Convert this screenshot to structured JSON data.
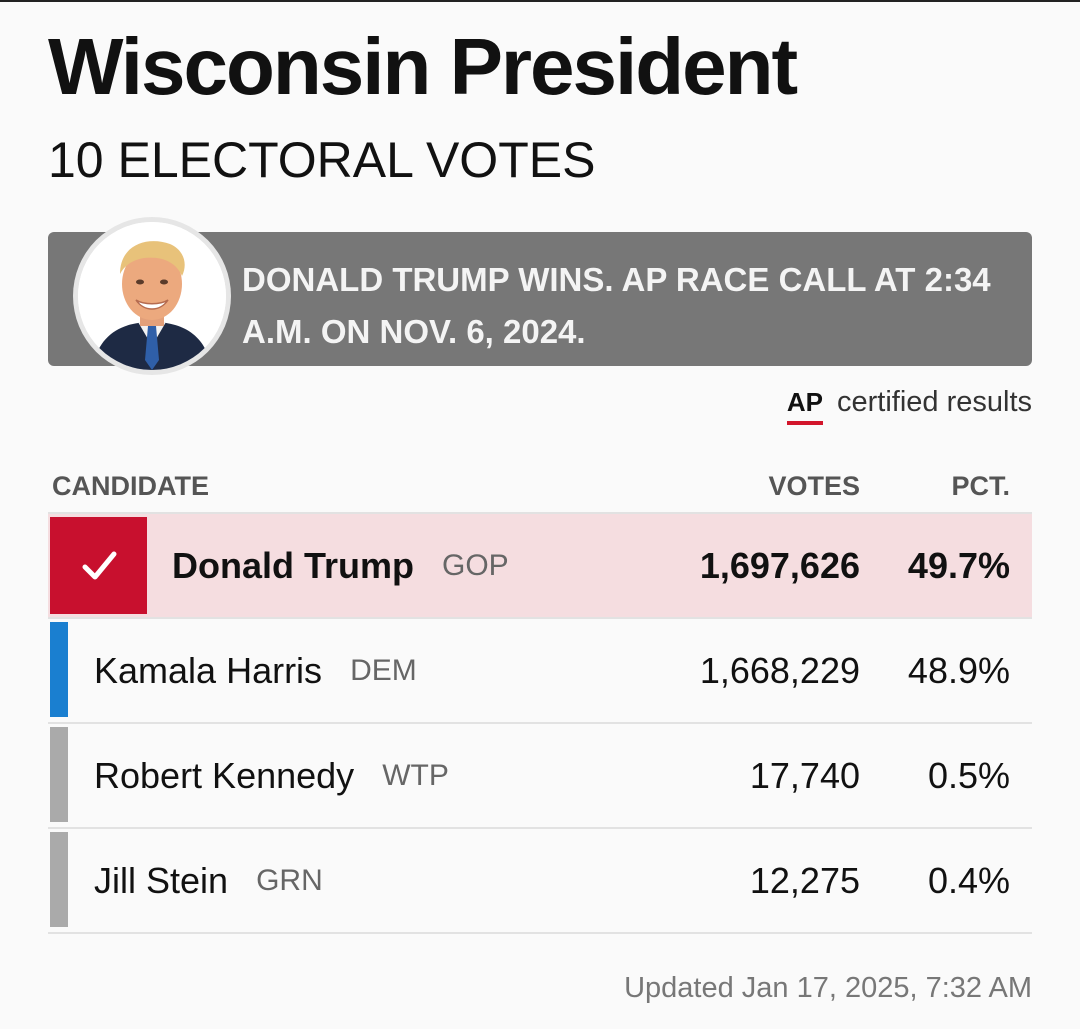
{
  "race": {
    "title": "Wisconsin President",
    "subtitle": "10 ELECTORAL VOTES"
  },
  "banner": {
    "text": "DONALD TRUMP WINS. AP RACE CALL AT 2:34 A.M. ON NOV. 6, 2024.",
    "avatar_icon": "candidate-portrait-icon"
  },
  "certification": {
    "logo": "AP",
    "text": "certified results",
    "underline_color": "#d2152b"
  },
  "table": {
    "headers": {
      "candidate": "CANDIDATE",
      "votes": "VOTES",
      "pct": "PCT."
    },
    "rows": [
      {
        "name": "Donald Trump",
        "party": "GOP",
        "votes": "1,697,626",
        "pct": "49.7%",
        "winner": true,
        "color": "#c8102e"
      },
      {
        "name": "Kamala Harris",
        "party": "DEM",
        "votes": "1,668,229",
        "pct": "48.9%",
        "winner": false,
        "color": "#1a7fd0"
      },
      {
        "name": "Robert Kennedy",
        "party": "WTP",
        "votes": "17,740",
        "pct": "0.5%",
        "winner": false,
        "color": "#aaaaaa"
      },
      {
        "name": "Jill Stein",
        "party": "GRN",
        "votes": "12,275",
        "pct": "0.4%",
        "winner": false,
        "color": "#aaaaaa"
      }
    ]
  },
  "footer": {
    "updated": "Updated  Jan 17, 2025, 7:32 AM"
  }
}
